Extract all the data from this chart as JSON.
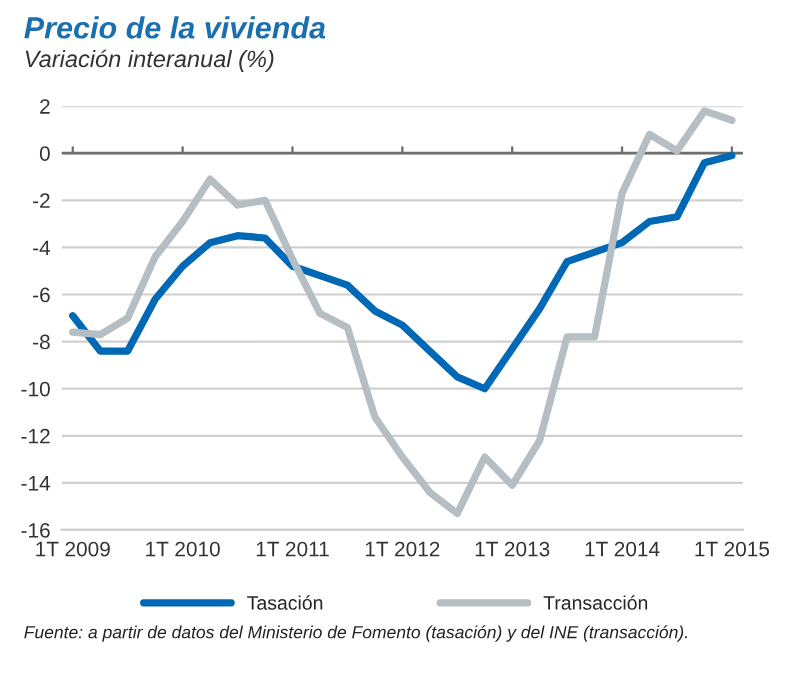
{
  "chart_data": {
    "type": "line",
    "title": "Precio de la vivienda",
    "subtitle": "Variación interanual (%)",
    "categories": [
      "1T 2009",
      null,
      null,
      null,
      "1T 2010",
      null,
      null,
      null,
      "1T 2011",
      null,
      null,
      null,
      "1T 2012",
      null,
      null,
      null,
      "1T 2013",
      null,
      null,
      null,
      "1T 2014",
      null,
      null,
      null,
      "1T 2015"
    ],
    "series": [
      {
        "name": "Tasación",
        "color": "#0068b4",
        "values": [
          -6.9,
          -8.4,
          -8.4,
          -6.2,
          -4.8,
          -3.8,
          -3.5,
          -3.6,
          -4.8,
          -5.2,
          -5.6,
          -6.7,
          -7.3,
          -8.4,
          -9.5,
          -10.0,
          -8.3,
          -6.6,
          -4.6,
          -4.2,
          -3.8,
          -2.9,
          -2.7,
          -0.4,
          -0.1
        ]
      },
      {
        "name": "Transacción",
        "color": "#b4bec3",
        "values": [
          -7.6,
          -7.7,
          -7.0,
          -4.4,
          -2.9,
          -1.1,
          -2.2,
          -2.0,
          -4.5,
          -6.8,
          -7.4,
          -11.2,
          -12.9,
          -14.4,
          -15.3,
          -12.9,
          -14.1,
          -12.2,
          -7.8,
          -7.8,
          -1.7,
          0.8,
          0.1,
          1.8,
          1.4
        ]
      }
    ],
    "ylim": [
      -16,
      2
    ],
    "yticks": [
      -16,
      -14,
      -12,
      -10,
      -8,
      -6,
      -4,
      -2,
      0,
      2
    ],
    "grid": "y",
    "legend": "bottom",
    "marker": "none",
    "line_style": "solid",
    "ref_lines": [
      {
        "axis": "y",
        "value": 0,
        "color": "#6e6e6e"
      }
    ],
    "annotations": [
      "Fuente: a partir de datos del Ministerio de Fomento (tasación) y del INE (transacción)."
    ]
  }
}
